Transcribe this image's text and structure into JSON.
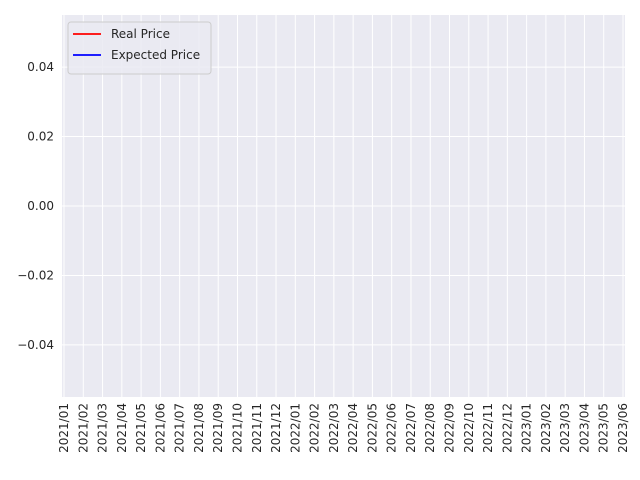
{
  "chart_data": {
    "type": "line",
    "title": "",
    "xlabel": "",
    "ylabel": "",
    "x_tick_labels": [
      "2021/01",
      "2021/02",
      "2021/03",
      "2021/04",
      "2021/05",
      "2021/06",
      "2021/07",
      "2021/08",
      "2021/09",
      "2021/10",
      "2021/11",
      "2021/12",
      "2022/01",
      "2022/02",
      "2022/03",
      "2022/04",
      "2022/05",
      "2022/06",
      "2022/07",
      "2022/08",
      "2022/09",
      "2022/10",
      "2022/11",
      "2022/12",
      "2023/01",
      "2023/02",
      "2023/03",
      "2023/04",
      "2023/05",
      "2023/06"
    ],
    "y_ticks": [
      -0.04,
      -0.02,
      0.0,
      0.02,
      0.04
    ],
    "y_tick_labels": [
      "−0.04",
      "−0.02",
      "0.00",
      "0.02",
      "0.04"
    ],
    "ylim": [
      -0.055,
      0.055
    ],
    "grid": true,
    "legend_position": "top-left",
    "background_color": "#eaeaf2",
    "grid_color": "#ffffff",
    "series": [
      {
        "name": "Real Price",
        "color": "#ff0000",
        "x": [],
        "y": []
      },
      {
        "name": "Expected Price",
        "color": "#0000ff",
        "x": [],
        "y": []
      }
    ]
  }
}
